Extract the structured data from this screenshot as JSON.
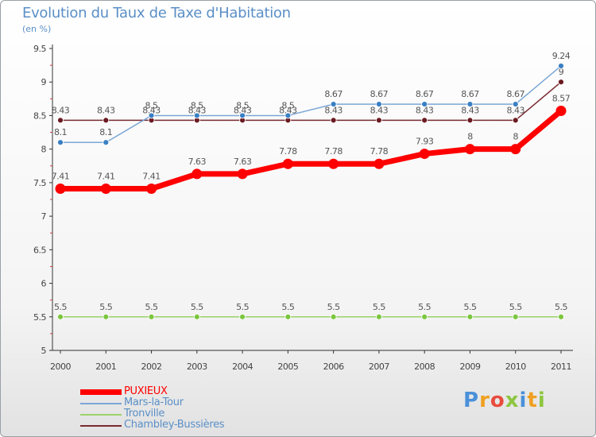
{
  "header": {
    "title": "Evolution du Taux de Taxe d'Habitation",
    "subtitle": "(en %)"
  },
  "logo": {
    "text": "Proxiti",
    "letters": [
      "P",
      "r",
      "o",
      "x",
      "i",
      "t",
      "i"
    ],
    "colors": [
      "#4a90d9",
      "#f0a020",
      "#e84c3d",
      "#8cc63f",
      "#4a90d9",
      "#f0a020",
      "#8cc63f"
    ]
  },
  "legend": {
    "items": [
      {
        "label": "PUXIEUX",
        "color": "#ff0000"
      },
      {
        "label": "Mars-la-Tour",
        "color": "#7aa7d6"
      },
      {
        "label": "Tronville",
        "color": "#9bd26a"
      },
      {
        "label": "Chambley-Bussières",
        "color": "#7a2a30"
      }
    ]
  },
  "chart_data": {
    "type": "line",
    "title": "Evolution du Taux de Taxe d'Habitation",
    "ylabel": "(en %)",
    "xlabel": "",
    "categories": [
      "2000",
      "2001",
      "2002",
      "2003",
      "2004",
      "2005",
      "2006",
      "2007",
      "2008",
      "2009",
      "2010",
      "2011"
    ],
    "ylim": [
      5,
      9.5
    ],
    "yticks": [
      "5",
      "5.5",
      "6",
      "6.5",
      "7",
      "7.5",
      "8",
      "8.5",
      "9",
      "9.5"
    ],
    "series": [
      {
        "name": "Chambley-Bussières",
        "color": "#7a2a30",
        "point_color": "#6a1a20",
        "line_width": 1.5,
        "marker_r": 3.5,
        "values": [
          8.43,
          8.43,
          8.43,
          8.43,
          8.43,
          8.43,
          8.43,
          8.43,
          8.43,
          8.43,
          8.43,
          9
        ],
        "labels": [
          "8.43",
          "8.43",
          "8.43",
          "8.43",
          "8.43",
          "8.43",
          "8.43",
          "8.43",
          "8.43",
          "8.43",
          "8.43",
          "9"
        ]
      },
      {
        "name": "Mars-la-Tour",
        "color": "#7aa7d6",
        "point_color": "#3a7fc4",
        "line_width": 1.5,
        "marker_r": 3.5,
        "values": [
          8.1,
          8.1,
          8.5,
          8.5,
          8.5,
          8.5,
          8.67,
          8.67,
          8.67,
          8.67,
          8.67,
          9.24
        ],
        "labels": [
          "8.1",
          "8.1",
          "8.5",
          "8.5",
          "8.5",
          "8.5",
          "8.67",
          "8.67",
          "8.67",
          "8.67",
          "8.67",
          "9.24"
        ]
      },
      {
        "name": "Tronville",
        "color": "#9bd26a",
        "point_color": "#7cc63f",
        "line_width": 1.5,
        "marker_r": 3.5,
        "values": [
          5.5,
          5.5,
          5.5,
          5.5,
          5.5,
          5.5,
          5.5,
          5.5,
          5.5,
          5.5,
          5.5,
          5.5
        ],
        "labels": [
          "5.5",
          "5.5",
          "5.5",
          "5.5",
          "5.5",
          "5.5",
          "5.5",
          "5.5",
          "5.5",
          "5.5",
          "5.5",
          "5.5"
        ]
      },
      {
        "name": "PUXIEUX",
        "color": "#ff0000",
        "point_color": "#ff0000",
        "line_width": 7,
        "marker_r": 6.5,
        "values": [
          7.41,
          7.41,
          7.41,
          7.63,
          7.63,
          7.78,
          7.78,
          7.78,
          7.93,
          8,
          8,
          8.57
        ],
        "labels": [
          "7.41",
          "7.41",
          "7.41",
          "7.63",
          "7.63",
          "7.78",
          "7.78",
          "7.78",
          "7.93",
          "8",
          "8",
          "8.57"
        ]
      }
    ]
  }
}
